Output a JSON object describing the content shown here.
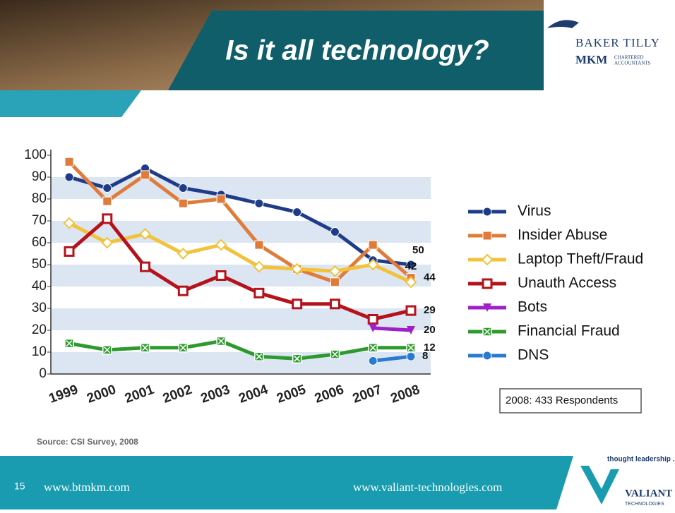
{
  "slide": {
    "title": "Is it all technology?",
    "logo_line1": "BAKER TILLY",
    "logo_line2": "MKM",
    "logo_sub1": "CHARTERED",
    "logo_sub2": "ACCOUNTANTS",
    "source": "Source:  CSI Survey, 2008",
    "note": "2008: 433 Respondents",
    "page": "15",
    "footer_left": "www.btmkm.com",
    "footer_right": "www.valiant-technologies.com",
    "tagline": "thought leadership .",
    "brand": "VALIANT",
    "brand_sub": "TECHNOLOGIES"
  },
  "chart_data": {
    "type": "line",
    "grid": "bands",
    "categories": [
      "1999",
      "2000",
      "2001",
      "2002",
      "2003",
      "2004",
      "2005",
      "2006",
      "2007",
      "2008"
    ],
    "ylim": [
      0,
      100
    ],
    "yticks": [
      0,
      10,
      20,
      30,
      40,
      50,
      60,
      70,
      80,
      90,
      100
    ],
    "series": [
      {
        "name": "Virus",
        "color": "#1f3c88",
        "marker": "circle",
        "values": [
          90,
          85,
          94,
          85,
          82,
          78,
          74,
          65,
          52,
          50
        ]
      },
      {
        "name": "Insider Abuse",
        "color": "#e07b39",
        "marker": "square",
        "values": [
          97,
          79,
          91,
          78,
          80,
          59,
          48,
          42,
          59,
          44
        ]
      },
      {
        "name": "Laptop Theft/Fraud",
        "color": "#f2c23a",
        "marker": "diamond",
        "values": [
          69,
          60,
          64,
          55,
          59,
          49,
          48,
          47,
          50,
          42
        ]
      },
      {
        "name": "Unauth Access",
        "color": "#b5121b",
        "marker": "hollow-square",
        "values": [
          56,
          71,
          49,
          38,
          45,
          37,
          32,
          32,
          25,
          29
        ]
      },
      {
        "name": "Bots",
        "color": "#a020c8",
        "marker": "triangle",
        "values": [
          null,
          null,
          null,
          null,
          null,
          null,
          null,
          null,
          21,
          20
        ]
      },
      {
        "name": "Financial Fraud",
        "color": "#2e9a2e",
        "marker": "x",
        "values": [
          14,
          11,
          12,
          12,
          15,
          8,
          7,
          9,
          12,
          12
        ]
      },
      {
        "name": "DNS",
        "color": "#2a7bd0",
        "marker": "circle",
        "values": [
          null,
          null,
          null,
          null,
          null,
          null,
          null,
          null,
          6,
          8
        ]
      }
    ]
  }
}
